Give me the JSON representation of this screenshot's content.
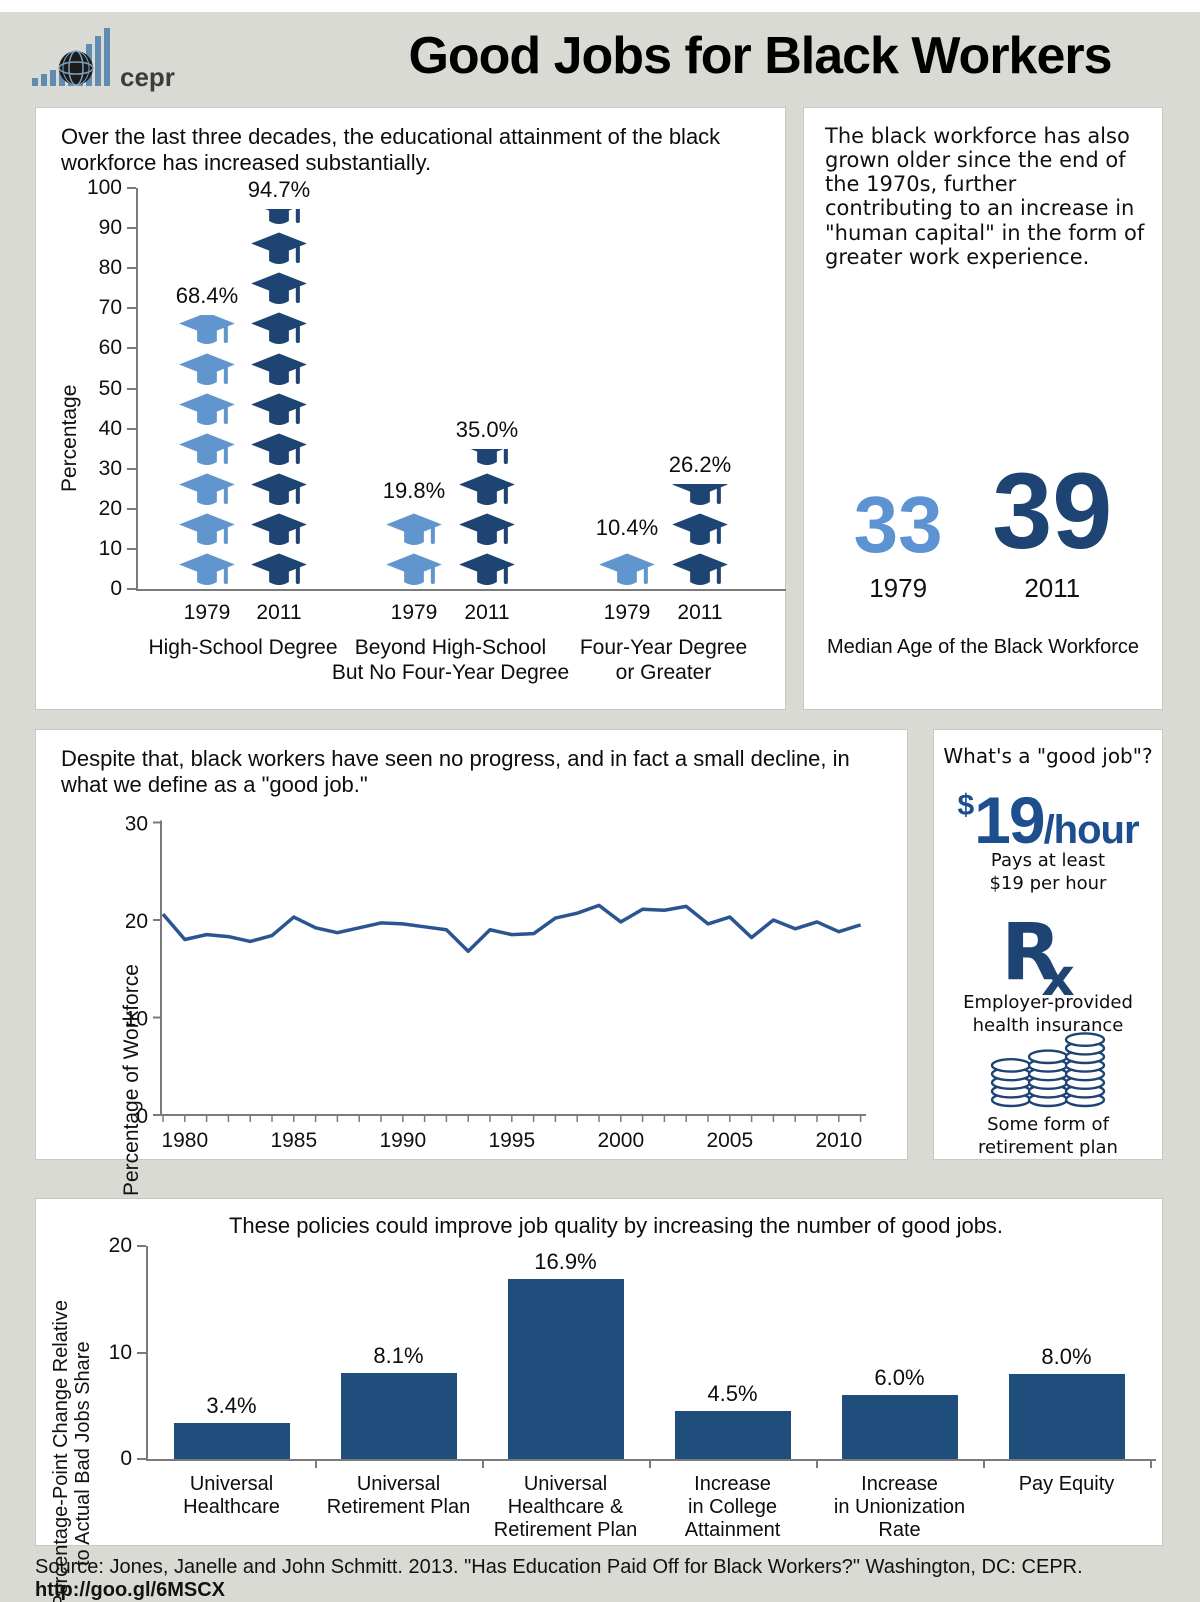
{
  "page": {
    "bg_color": "#dadad4",
    "panel_bg": "#ffffff",
    "light_blue": "#5d93d2",
    "dark_blue": "#1d4473",
    "line_blue": "#2b5591",
    "bar_blue": "#1f4e7d",
    "wage_blue": "#1d4f8f",
    "axis_gray": "#7a7a7a"
  },
  "header": {
    "title": "Good Jobs for Black Workers",
    "logo_text": "cepr"
  },
  "panels": {
    "age": {
      "text": "The black workforce has also grown older since the end of the 1970s, further contributing to an increase in \"human capital\" in the form of greater work experience.",
      "stats": [
        {
          "value": "33",
          "year": "1979",
          "color": "#5d93d2"
        },
        {
          "value": "39",
          "year": "2011",
          "color": "#1d4473"
        }
      ],
      "caption": "Median Age of the Black Workforce"
    },
    "good_job_definition": {
      "title": "What's a \"good job\"?",
      "wage": {
        "dollar": "$",
        "amount": "19",
        "unit": "/hour",
        "caption": "Pays at least\n$19 per hour"
      },
      "health": {
        "icon": "rx-icon",
        "rx_r": "R",
        "rx_x": "x",
        "caption": "Employer-provided\nhealth insurance"
      },
      "retirement": {
        "icon": "coin-stacks-icon",
        "stacks": [
          5,
          6,
          8
        ],
        "caption": "Some form of\nretirement plan"
      }
    }
  },
  "chart_data": [
    {
      "type": "pictograph-bar",
      "icon": "graduation-cap",
      "unit_per_icon": 10,
      "title": "Over the last three decades, the educational attainment of the black workforce has increased substantially.",
      "ylabel": "Percentage",
      "ylim": [
        0,
        100
      ],
      "yticks": [
        0,
        10,
        20,
        30,
        40,
        50,
        60,
        70,
        80,
        90,
        100
      ],
      "series_colors": {
        "1979": "#6095ce",
        "2011": "#1d4473"
      },
      "groups": [
        {
          "label": "High-School Degree",
          "series": [
            {
              "year": "1979",
              "value": 68.4,
              "label": "68.4%"
            },
            {
              "year": "2011",
              "value": 94.7,
              "label": "94.7%"
            }
          ]
        },
        {
          "label": "Beyond High-School\nBut No Four-Year Degree",
          "series": [
            {
              "year": "1979",
              "value": 19.8,
              "label": "19.8%"
            },
            {
              "year": "2011",
              "value": 35.0,
              "label": "35.0%"
            }
          ]
        },
        {
          "label": "Four-Year Degree\nor Greater",
          "series": [
            {
              "year": "1979",
              "value": 10.4,
              "label": "10.4%"
            },
            {
              "year": "2011",
              "value": 26.2,
              "label": "26.2%"
            }
          ]
        }
      ]
    },
    {
      "type": "line",
      "title": "Despite that, black workers have seen no progress, and in fact a small decline, in what we define as a \"good job.\"",
      "ylabel": "Percentage of Workforce",
      "ylim": [
        0,
        30
      ],
      "yticks": [
        0,
        10,
        20,
        30
      ],
      "xticks": [
        1980,
        1985,
        1990,
        1995,
        2000,
        2005,
        2010
      ],
      "line_color": "#2b5591",
      "x": [
        1979,
        1980,
        1981,
        1982,
        1983,
        1984,
        1985,
        1986,
        1987,
        1988,
        1989,
        1990,
        1991,
        1992,
        1993,
        1994,
        1995,
        1996,
        1997,
        1998,
        1999,
        2000,
        2001,
        2002,
        2003,
        2004,
        2005,
        2006,
        2007,
        2008,
        2009,
        2010,
        2011
      ],
      "y": [
        20.6,
        18.0,
        18.5,
        18.3,
        17.8,
        18.4,
        20.3,
        19.2,
        18.7,
        19.2,
        19.7,
        19.6,
        19.3,
        19.0,
        16.8,
        19.0,
        18.5,
        18.6,
        20.2,
        20.7,
        21.5,
        19.8,
        21.1,
        21.0,
        21.4,
        19.6,
        20.3,
        18.2,
        20.0,
        19.1,
        19.8,
        18.8,
        19.5
      ]
    },
    {
      "type": "bar",
      "title": "These policies could improve job quality by increasing the number of good jobs.",
      "ylabel": "Percentage-Point Change Relative\nto Actual Bad Jobs Share",
      "ylim": [
        0,
        20
      ],
      "yticks": [
        0,
        10,
        20
      ],
      "bar_color": "#1f4e7d",
      "categories": [
        "Universal\nHealthcare",
        "Universal\nRetirement Plan",
        "Universal\nHealthcare &\nRetirement Plan",
        "Increase\nin College\nAttainment",
        "Increase\nin Unionization\nRate",
        "Pay Equity"
      ],
      "values": [
        3.4,
        8.1,
        16.9,
        4.5,
        6.0,
        8.0
      ],
      "labels": [
        "3.4%",
        "8.1%",
        "16.9%",
        "4.5%",
        "6.0%",
        "8.0%"
      ]
    }
  ],
  "footer": {
    "source_text": "Source: Jones, Janelle and John Schmitt. 2013. \"Has Education Paid Off for Black Workers?\" Washington, DC: CEPR. ",
    "source_link": "http://goo.gl/6MSCX"
  }
}
